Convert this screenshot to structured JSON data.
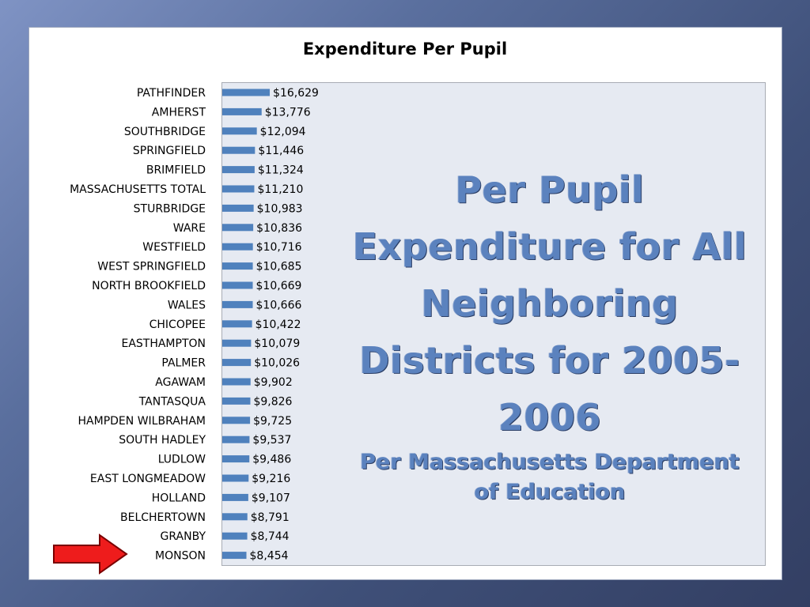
{
  "slide": {
    "overlay_title": "Per Pupil Expenditure for All Neighboring Districts for 2005-2006",
    "overlay_subtitle": "Per Massachusetts Department of Education",
    "arrow_color": "#ee1c1c"
  },
  "chart_data": {
    "type": "bar",
    "orientation": "horizontal",
    "title": "Expenditure Per Pupil",
    "xlabel": "",
    "ylabel": "",
    "bar_color": "#4f81bd",
    "grid": false,
    "legend": "none",
    "xlim": [
      0,
      190000
    ],
    "categories": [
      "PATHFINDER",
      "AMHERST",
      "SOUTHBRIDGE",
      "SPRINGFIELD",
      "BRIMFIELD",
      "MASSACHUSETTS TOTAL",
      "STURBRIDGE",
      "WARE",
      "WESTFIELD",
      "WEST SPRINGFIELD",
      "NORTH BROOKFIELD",
      "WALES",
      "CHICOPEE",
      "EASTHAMPTON",
      "PALMER",
      "AGAWAM",
      "TANTASQUA",
      "HAMPDEN WILBRAHAM",
      "SOUTH HADLEY",
      "LUDLOW",
      "EAST LONGMEADOW",
      "HOLLAND",
      "BELCHERTOWN",
      "GRANBY",
      "MONSON"
    ],
    "values": [
      16629,
      13776,
      12094,
      11446,
      11324,
      11210,
      10983,
      10836,
      10716,
      10685,
      10669,
      10666,
      10422,
      10079,
      10026,
      9902,
      9826,
      9725,
      9537,
      9486,
      9216,
      9107,
      8791,
      8744,
      8454
    ],
    "data_labels": [
      "$16,629",
      "$13,776",
      "$12,094",
      "$11,446",
      "$11,324",
      "$11,210",
      "$10,983",
      "$10,836",
      "$10,716",
      "$10,685",
      "$10,669",
      "$10,666",
      "$10,422",
      "$10,079",
      "$10,026",
      "$9,902",
      "$9,826",
      "$9,725",
      "$9,537",
      "$9,486",
      "$9,216",
      "$9,107",
      "$8,791",
      "$8,744",
      "$8,454"
    ]
  }
}
